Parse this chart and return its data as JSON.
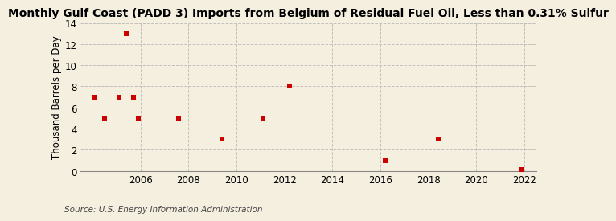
{
  "title": "Monthly Gulf Coast (PADD 3) Imports from Belgium of Residual Fuel Oil, Less than 0.31% Sulfur",
  "ylabel": "Thousand Barrels per Day",
  "source": "Source: U.S. Energy Information Administration",
  "background_color": "#f5efe0",
  "plot_bg_color": "#f5efe0",
  "point_color": "#cc0000",
  "point_marker": "s",
  "point_size": 14,
  "xlim": [
    2003.5,
    2022.5
  ],
  "ylim": [
    0,
    14
  ],
  "yticks": [
    0,
    2,
    4,
    6,
    8,
    10,
    12,
    14
  ],
  "xticks": [
    2006,
    2008,
    2010,
    2012,
    2014,
    2016,
    2018,
    2020,
    2022
  ],
  "grid_color": "#bbbbbb",
  "grid_style": "--",
  "grid_alpha": 0.9,
  "data_x": [
    2004.1,
    2004.5,
    2005.1,
    2005.4,
    2005.7,
    2005.9,
    2007.6,
    2009.4,
    2011.1,
    2012.2,
    2016.2,
    2018.4,
    2021.9
  ],
  "data_y": [
    7,
    5,
    7,
    13,
    7,
    5,
    5,
    3,
    5,
    8,
    1,
    3,
    0.15
  ],
  "title_fontsize": 10,
  "ylabel_fontsize": 8.5,
  "tick_fontsize": 8.5,
  "source_fontsize": 7.5
}
